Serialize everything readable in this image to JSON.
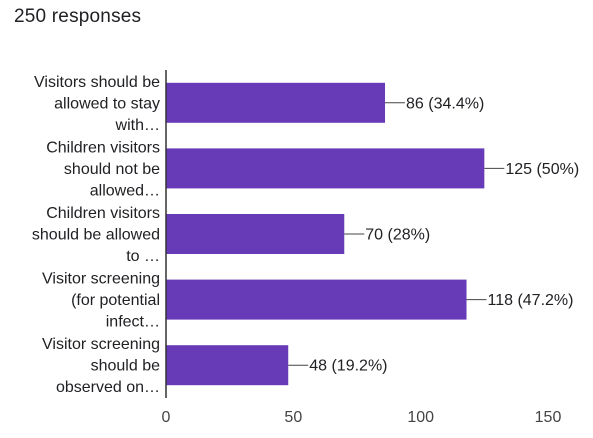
{
  "summary": "250 responses",
  "colors": {
    "bar": "#673ab7",
    "axis": "#333333",
    "grid": "#cccccc"
  },
  "chart_data": {
    "type": "bar",
    "orientation": "horizontal",
    "categories": [
      [
        "Visitors should be",
        "allowed to stay",
        "with…"
      ],
      [
        "Children visitors",
        "should not be",
        "allowed…"
      ],
      [
        "Children visitors",
        "should be allowed",
        "to …"
      ],
      [
        "Visitor screening",
        "(for potential",
        "infect…"
      ],
      [
        "Visitor screening",
        "should be",
        "observed on…"
      ]
    ],
    "values": [
      86,
      125,
      70,
      118,
      48
    ],
    "data_labels": [
      "86 (34.4%)",
      "125 (50%)",
      "70 (28%)",
      "118 (47.2%)",
      "48 (19.2%)"
    ],
    "xlim": [
      0,
      150
    ],
    "xticks": [
      "0",
      "50",
      "100",
      "150"
    ],
    "grid": false
  }
}
